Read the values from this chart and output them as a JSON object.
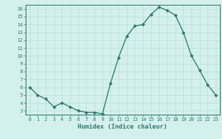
{
  "x": [
    0,
    1,
    2,
    3,
    4,
    5,
    6,
    7,
    8,
    9,
    10,
    11,
    12,
    13,
    14,
    15,
    16,
    17,
    18,
    19,
    20,
    21,
    22,
    23
  ],
  "y": [
    6.0,
    5.0,
    4.5,
    3.5,
    4.0,
    3.5,
    3.0,
    2.8,
    2.8,
    2.6,
    6.5,
    9.8,
    12.5,
    13.8,
    14.0,
    15.3,
    16.2,
    15.8,
    15.2,
    13.0,
    10.0,
    8.2,
    6.3,
    5.0
  ],
  "xlabel": "Humidex (Indice chaleur)",
  "ylim": [
    2.5,
    16.5
  ],
  "xlim": [
    -0.5,
    23.5
  ],
  "yticks": [
    3,
    4,
    5,
    6,
    7,
    8,
    9,
    10,
    11,
    12,
    13,
    14,
    15,
    16
  ],
  "xticks": [
    0,
    1,
    2,
    3,
    4,
    5,
    6,
    7,
    8,
    9,
    10,
    11,
    12,
    13,
    14,
    15,
    16,
    17,
    18,
    19,
    20,
    21,
    22,
    23
  ],
  "line_color": "#2d7a6e",
  "marker": "D",
  "marker_size": 2.2,
  "bg_color": "#d4f0ee",
  "grid_color": "#b8ddd8",
  "line_width": 1.0,
  "tick_fontsize": 5.2,
  "xlabel_fontsize": 6.5,
  "tick_color": "#2d7a6e",
  "xlabel_color": "#2d7a6e",
  "spine_color": "#2d7a6e"
}
